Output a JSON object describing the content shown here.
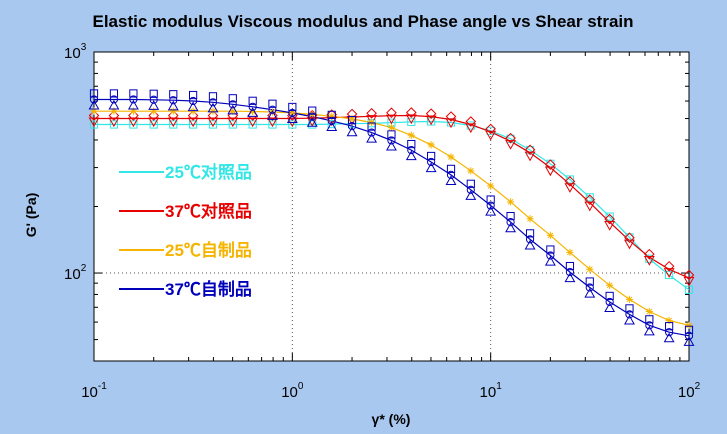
{
  "chart_data": {
    "type": "line",
    "title": "Elastic modulus Viscous modulus and Phase angle vs Shear strain",
    "xlabel": "γ* (%)",
    "ylabel": "G' (Pa)",
    "x_scale": "log",
    "y_scale": "log",
    "xlim": [
      0.1,
      100
    ],
    "ylim": [
      40,
      1000
    ],
    "grid": true,
    "legend_position": "left",
    "x_ticks": [
      {
        "value": 0.1,
        "base": "10",
        "exp": "-1"
      },
      {
        "value": 1,
        "base": "10",
        "exp": "0"
      },
      {
        "value": 10,
        "base": "10",
        "exp": "1"
      },
      {
        "value": 100,
        "base": "10",
        "exp": "2"
      }
    ],
    "y_ticks": [
      {
        "value": 100,
        "base": "10",
        "exp": "2"
      },
      {
        "value": 1000,
        "base": "10",
        "exp": "3"
      }
    ],
    "x": [
      0.1,
      0.126,
      0.158,
      0.2,
      0.251,
      0.316,
      0.398,
      0.501,
      0.631,
      0.794,
      1,
      1.26,
      1.58,
      2,
      2.51,
      3.16,
      3.98,
      5.01,
      6.31,
      7.94,
      10,
      12.6,
      15.8,
      20,
      25.1,
      31.6,
      39.8,
      50.1,
      63.1,
      79.4,
      100
    ],
    "series": [
      {
        "name": "25℃对照品",
        "color": "#33e6e6",
        "markers": [
          "square"
        ],
        "values": [
          470,
          470,
          470,
          470,
          470,
          470,
          470,
          470,
          470,
          470,
          470,
          470,
          472,
          474,
          476,
          479,
          483,
          485,
          480,
          465,
          440,
          405,
          360,
          312,
          265,
          220,
          180,
          145,
          116,
          98,
          84
        ]
      },
      {
        "name": "37℃对照品",
        "color": "#e60000",
        "markers": [
          "diamond",
          "triangle-down"
        ],
        "values": [
          500,
          500,
          500,
          500,
          500,
          500,
          500,
          500,
          500,
          500,
          500,
          502,
          505,
          508,
          512,
          515,
          516,
          510,
          495,
          470,
          435,
          395,
          350,
          300,
          252,
          208,
          170,
          140,
          118,
          104,
          95
        ]
      },
      {
        "name": "25℃自制品",
        "color": "#f5b400",
        "markers": [
          "asterisk"
        ],
        "values": [
          540,
          540,
          540,
          540,
          540,
          540,
          540,
          540,
          538,
          535,
          530,
          522,
          512,
          498,
          480,
          455,
          420,
          380,
          335,
          290,
          248,
          210,
          176,
          148,
          124,
          104,
          88,
          76,
          67,
          61,
          58
        ]
      },
      {
        "name": "37℃自制品",
        "color": "#0000bb",
        "markers": [
          "square",
          "circle",
          "triangle"
        ],
        "values": [
          610,
          610,
          610,
          608,
          605,
          600,
          592,
          580,
          565,
          548,
          530,
          510,
          488,
          462,
          432,
          398,
          360,
          318,
          278,
          238,
          202,
          170,
          142,
          120,
          101,
          86,
          74,
          65,
          58,
          54,
          52
        ]
      }
    ]
  }
}
